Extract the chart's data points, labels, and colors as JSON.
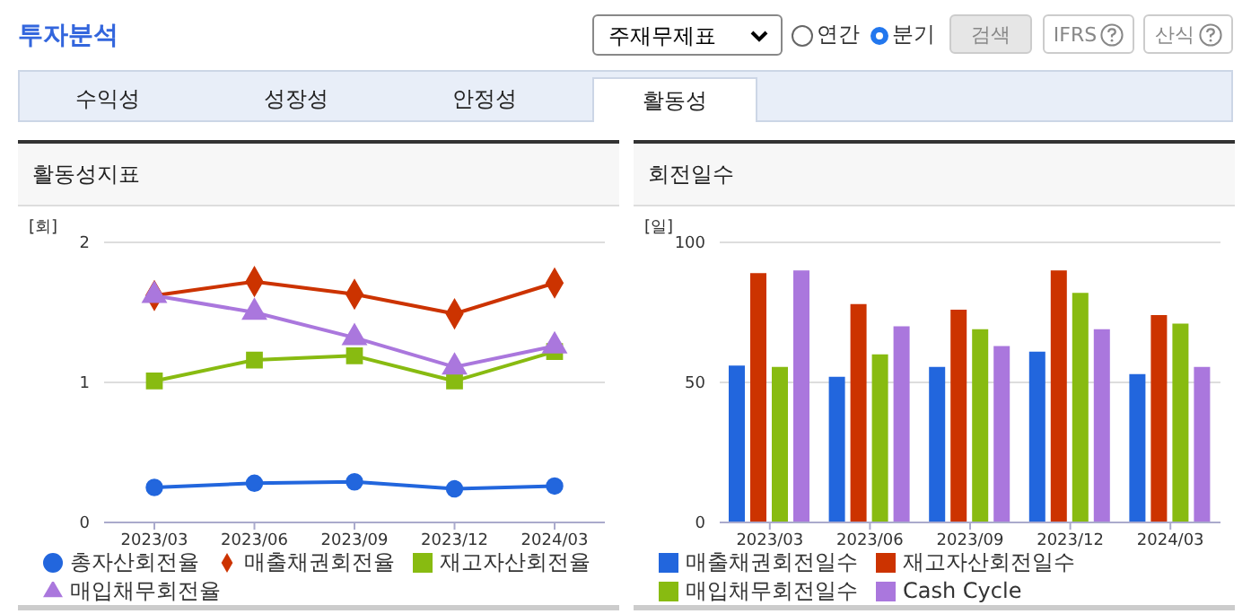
{
  "chart_data": [
    {
      "type": "line",
      "title": "활동성지표",
      "ylabel": "[회]",
      "categories": [
        "2023/03",
        "2023/06",
        "2023/09",
        "2023/12",
        "2024/03"
      ],
      "annotations": [
        "투자분석",
        "주재무제표",
        "연간",
        "분기",
        "검색",
        "IFRS",
        "산식",
        "수익성",
        "성장성",
        "안정성",
        "활동성"
      ],
      "series": [
        {
          "name": "총자산회전율",
          "color": "#2266dd",
          "marker": "circle",
          "values": [
            0.25,
            0.28,
            0.29,
            0.24,
            0.26
          ]
        },
        {
          "name": "매출채권회전율",
          "color": "#cc3300",
          "marker": "diamond",
          "values": [
            1.62,
            1.72,
            1.63,
            1.49,
            1.71
          ]
        },
        {
          "name": "재고자산회전율",
          "color": "#88bb11",
          "marker": "square",
          "values": [
            1.01,
            1.16,
            1.19,
            1.01,
            1.22
          ]
        },
        {
          "name": "매입채무회전율",
          "color": "#aa77dd",
          "marker": "triangle",
          "values": [
            1.62,
            1.5,
            1.32,
            1.11,
            1.26
          ]
        }
      ],
      "ylim": [
        0,
        2
      ],
      "yticks": [
        0,
        1,
        2
      ],
      "grid": "y",
      "legend": "bottom"
    },
    {
      "type": "bar",
      "title": "회전일수",
      "ylabel": "[일]",
      "categories": [
        "2023/03",
        "2023/06",
        "2023/09",
        "2023/12",
        "2024/03"
      ],
      "series": [
        {
          "name": "매출채권회전일수",
          "color": "#2266dd",
          "values": [
            56,
            52,
            55.5,
            61,
            53
          ]
        },
        {
          "name": "재고자산회전일수",
          "color": "#cc3300",
          "values": [
            89,
            78,
            76,
            90,
            74
          ]
        },
        {
          "name": "매입채무회전일수",
          "color": "#88bb11",
          "values": [
            55.5,
            60,
            69,
            82,
            71
          ]
        },
        {
          "name": "Cash Cycle",
          "color": "#aa77dd",
          "values": [
            90,
            70,
            63,
            69,
            55.5
          ]
        }
      ],
      "ylim": [
        0,
        100
      ],
      "yticks": [
        0,
        50,
        100
      ],
      "grid": "y",
      "legend": "bottom"
    }
  ]
}
